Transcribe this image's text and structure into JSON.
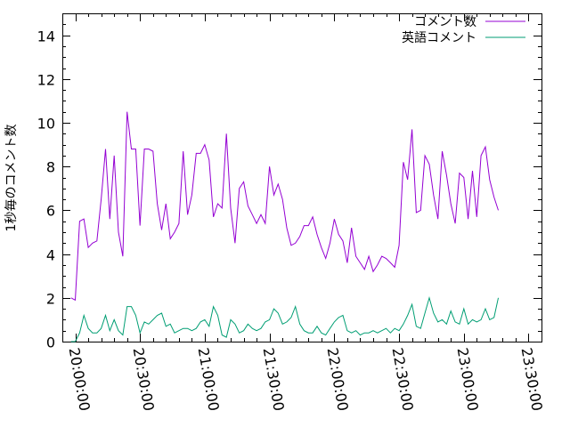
{
  "chart_data": {
    "type": "line",
    "ylabel": "1秒毎のコメント数",
    "xlabel": "",
    "title": "",
    "x_time_labels": [
      "20:00:00",
      "20:30:00",
      "21:00:00",
      "21:30:00",
      "22:00:00",
      "22:30:00",
      "23:00:00",
      "23:30:00"
    ],
    "x_sample_interval_min": 2,
    "x_start": "19:58:00",
    "xlim": [
      "19:54:00",
      "23:36:00"
    ],
    "y_ticks": [
      0,
      2,
      4,
      6,
      8,
      10,
      12,
      14
    ],
    "ylim": [
      0,
      15
    ],
    "grid": false,
    "legend_position": "top-right",
    "series": [
      {
        "name": "コメント数",
        "color": "#9400d3",
        "values": [
          2.0,
          1.9,
          5.5,
          5.6,
          4.3,
          4.5,
          4.6,
          6.5,
          8.8,
          5.6,
          8.5,
          5.0,
          3.9,
          10.5,
          8.8,
          8.8,
          5.3,
          8.8,
          8.8,
          8.7,
          6.3,
          5.1,
          6.3,
          4.7,
          5.0,
          5.4,
          8.7,
          5.8,
          6.7,
          8.6,
          8.6,
          9.0,
          8.3,
          5.7,
          6.3,
          6.1,
          9.5,
          6.1,
          4.5,
          7.0,
          7.3,
          6.2,
          5.8,
          5.4,
          5.8,
          5.4,
          8.0,
          6.7,
          7.2,
          6.5,
          5.2,
          4.4,
          4.5,
          4.8,
          5.3,
          5.3,
          5.7,
          4.9,
          4.3,
          3.8,
          4.5,
          5.6,
          4.9,
          4.6,
          3.6,
          5.2,
          3.9,
          3.6,
          3.3,
          3.9,
          3.2,
          3.5,
          3.9,
          3.8,
          3.6,
          3.4,
          4.4,
          8.2,
          7.4,
          9.7,
          5.9,
          6.0,
          8.5,
          8.1,
          6.7,
          5.6,
          8.7,
          7.6,
          6.3,
          5.4,
          7.7,
          7.5,
          5.6,
          7.8,
          5.7,
          8.5,
          8.9,
          7.4,
          6.6,
          6.0
        ]
      },
      {
        "name": "英語コメント",
        "color": "#009e73",
        "values": [
          0.0,
          0.0,
          0.4,
          1.2,
          0.6,
          0.4,
          0.4,
          0.6,
          1.2,
          0.5,
          1.0,
          0.5,
          0.3,
          1.6,
          1.6,
          1.2,
          0.4,
          0.9,
          0.8,
          1.0,
          1.2,
          1.3,
          0.7,
          0.8,
          0.4,
          0.5,
          0.6,
          0.6,
          0.5,
          0.6,
          0.9,
          1.0,
          0.7,
          1.6,
          1.2,
          0.3,
          0.2,
          1.0,
          0.8,
          0.4,
          0.5,
          0.8,
          0.6,
          0.5,
          0.6,
          0.9,
          1.0,
          1.5,
          1.3,
          0.8,
          0.9,
          1.1,
          1.6,
          0.8,
          0.5,
          0.4,
          0.4,
          0.7,
          0.4,
          0.3,
          0.6,
          0.9,
          1.1,
          1.2,
          0.5,
          0.4,
          0.5,
          0.3,
          0.4,
          0.4,
          0.5,
          0.4,
          0.5,
          0.6,
          0.4,
          0.6,
          0.5,
          0.8,
          1.2,
          1.7,
          0.7,
          0.6,
          1.3,
          2.0,
          1.3,
          0.9,
          1.0,
          0.8,
          1.4,
          0.9,
          0.8,
          1.5,
          0.8,
          1.0,
          0.9,
          1.0,
          1.5,
          1.0,
          1.1,
          2.0
        ]
      }
    ]
  }
}
